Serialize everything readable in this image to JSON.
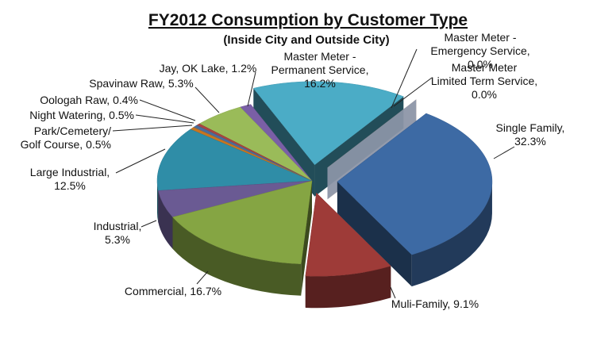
{
  "chart_data": {
    "type": "pie",
    "title": "FY2012 Consumption by Customer Type",
    "subtitle": "(Inside City and Outside City)",
    "slices": [
      {
        "name": "Single Family",
        "value": 32.3,
        "label_lines": [
          "Single Family,",
          "32.3%"
        ],
        "color": "#3d6aa4"
      },
      {
        "name": "Muli-Family",
        "value": 9.1,
        "label_lines": [
          "Muli-Family, 9.1%"
        ],
        "color": "#9e3b38"
      },
      {
        "name": "Commercial",
        "value": 16.7,
        "label_lines": [
          "Commercial, 16.7%"
        ],
        "color": "#85a543"
      },
      {
        "name": "Industrial",
        "value": 5.3,
        "label_lines": [
          "Industrial,",
          "5.3%"
        ],
        "color": "#6a5a93"
      },
      {
        "name": "Large Industrial",
        "value": 12.5,
        "label_lines": [
          "Large Industrial,",
          "12.5%"
        ],
        "color": "#2f8da7"
      },
      {
        "name": "Park/Cemetery/ Golf Course",
        "value": 0.5,
        "label_lines": [
          "Park/Cemetery/",
          "Golf Course, 0.5%"
        ],
        "color": "#c87520"
      },
      {
        "name": "Night Watering",
        "value": 0.5,
        "label_lines": [
          "Night Watering, 0.5%"
        ],
        "color": "#4a6d9c"
      },
      {
        "name": "Oologah Raw",
        "value": 0.4,
        "label_lines": [
          "Oologah Raw, 0.4%"
        ],
        "color": "#a84540"
      },
      {
        "name": "Spavinaw Raw",
        "value": 5.3,
        "label_lines": [
          "Spavinaw Raw, 5.3%"
        ],
        "color": "#9abb59"
      },
      {
        "name": "Jay, OK Lake",
        "value": 1.2,
        "label_lines": [
          "Jay, OK Lake, 1.2%"
        ],
        "color": "#7a5fa6"
      },
      {
        "name": "Master Meter - Permanent Service",
        "value": 16.2,
        "label_lines": [
          "Master Meter -",
          "Permanent Service,",
          "16.2%"
        ],
        "color": "#4bacc6"
      },
      {
        "name": "Master Meter - Emergency Service",
        "value": 0.0,
        "label_lines": [
          "Master Meter -",
          "Emergency Service,",
          "0.0%"
        ],
        "color": "#f79646"
      },
      {
        "name": "Master Meter Limited Term Service",
        "value": 0.0,
        "label_lines": [
          "Master Meter",
          "Limited Term Service,",
          "0.0%"
        ],
        "color": "#8eb4e3"
      }
    ]
  }
}
